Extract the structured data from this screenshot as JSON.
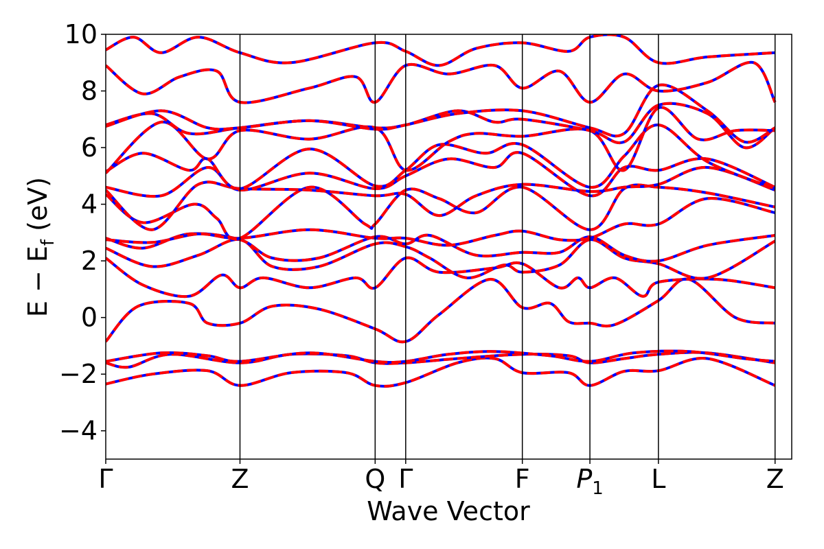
{
  "chart_data": {
    "type": "line",
    "title": "",
    "xlabel": "Wave Vector",
    "ylabel": "E − E_f (eV)",
    "ylabel_parts": {
      "main": "E − E",
      "sub": "f",
      "unit": "(eV)"
    },
    "ylim": [
      -5,
      10
    ],
    "yticks": [
      -4,
      -2,
      0,
      2,
      4,
      6,
      8,
      10
    ],
    "ytick_labels": [
      "−4",
      "−2",
      "0",
      "2",
      "4",
      "6",
      "8",
      "10"
    ],
    "xlim": [
      0,
      7.41
    ],
    "kpoints": [
      {
        "label": "Γ",
        "x": 0.0,
        "sub": ""
      },
      {
        "label": "Z",
        "x": 1.45,
        "sub": ""
      },
      {
        "label": "Q",
        "x": 2.91,
        "sub": ""
      },
      {
        "label": "Γ",
        "x": 3.24,
        "sub": ""
      },
      {
        "label": "F",
        "x": 4.5,
        "sub": ""
      },
      {
        "label": "P",
        "x": 5.23,
        "sub": "1"
      },
      {
        "label": "L",
        "x": 5.97,
        "sub": ""
      },
      {
        "label": "Z",
        "x": 7.23,
        "sub": ""
      }
    ],
    "series_styles": [
      {
        "color": "#0000ff",
        "style": "solid"
      },
      {
        "color": "#ff0000",
        "style": "dashed"
      }
    ],
    "bands": [
      [
        [
          0,
          -2.35
        ],
        [
          0.5,
          -2.0
        ],
        [
          1.1,
          -1.88
        ],
        [
          1.45,
          -2.4
        ],
        [
          2.0,
          -1.95
        ],
        [
          2.6,
          -1.95
        ],
        [
          2.91,
          -2.4
        ],
        [
          3.24,
          -2.3
        ],
        [
          3.8,
          -1.6
        ],
        [
          4.2,
          -1.45
        ],
        [
          4.5,
          -1.95
        ],
        [
          5.0,
          -1.95
        ],
        [
          5.23,
          -2.4
        ],
        [
          5.6,
          -1.9
        ],
        [
          5.97,
          -1.88
        ],
        [
          6.5,
          -1.45
        ],
        [
          7.23,
          -2.4
        ]
      ],
      [
        [
          0,
          -1.6
        ],
        [
          0.25,
          -1.75
        ],
        [
          0.7,
          -1.3
        ],
        [
          1.45,
          -1.6
        ],
        [
          2.0,
          -1.3
        ],
        [
          2.6,
          -1.35
        ],
        [
          2.91,
          -1.6
        ],
        [
          3.24,
          -1.6
        ],
        [
          3.8,
          -1.45
        ],
        [
          4.5,
          -1.3
        ],
        [
          5.0,
          -1.35
        ],
        [
          5.23,
          -1.6
        ],
        [
          5.6,
          -1.45
        ],
        [
          5.97,
          -1.3
        ],
        [
          6.5,
          -1.25
        ],
        [
          7.23,
          -1.6
        ]
      ],
      [
        [
          0,
          -1.55
        ],
        [
          0.6,
          -1.25
        ],
        [
          1.1,
          -1.35
        ],
        [
          1.45,
          -1.55
        ],
        [
          2.2,
          -1.25
        ],
        [
          2.91,
          -1.55
        ],
        [
          3.24,
          -1.55
        ],
        [
          3.7,
          -1.3
        ],
        [
          4.2,
          -1.2
        ],
        [
          4.8,
          -1.35
        ],
        [
          5.23,
          -1.55
        ],
        [
          5.7,
          -1.25
        ],
        [
          6.3,
          -1.2
        ],
        [
          6.9,
          -1.45
        ],
        [
          7.23,
          -1.55
        ]
      ],
      [
        [
          0,
          -0.85
        ],
        [
          0.35,
          0.4
        ],
        [
          0.9,
          0.5
        ],
        [
          1.1,
          -0.2
        ],
        [
          1.45,
          -0.2
        ],
        [
          1.8,
          0.4
        ],
        [
          2.3,
          0.3
        ],
        [
          2.91,
          -0.4
        ],
        [
          3.24,
          -0.85
        ],
        [
          3.6,
          0.1
        ],
        [
          4.15,
          1.35
        ],
        [
          4.5,
          0.35
        ],
        [
          4.8,
          0.5
        ],
        [
          5.0,
          -0.15
        ],
        [
          5.23,
          -0.2
        ],
        [
          5.5,
          -0.25
        ],
        [
          5.97,
          0.6
        ],
        [
          6.3,
          1.35
        ],
        [
          6.8,
          0.0
        ],
        [
          7.23,
          -0.2
        ]
      ],
      [
        [
          0,
          2.1
        ],
        [
          0.4,
          1.15
        ],
        [
          0.9,
          0.75
        ],
        [
          1.25,
          1.5
        ],
        [
          1.45,
          1.05
        ],
        [
          1.7,
          1.4
        ],
        [
          2.2,
          1.05
        ],
        [
          2.7,
          1.4
        ],
        [
          2.91,
          1.05
        ],
        [
          3.24,
          2.1
        ],
        [
          3.6,
          1.6
        ],
        [
          4.2,
          1.75
        ],
        [
          4.5,
          1.9
        ],
        [
          4.9,
          1.05
        ],
        [
          5.1,
          1.4
        ],
        [
          5.23,
          1.05
        ],
        [
          5.5,
          1.4
        ],
        [
          5.8,
          0.75
        ],
        [
          5.97,
          1.25
        ],
        [
          6.6,
          1.35
        ],
        [
          7.23,
          1.05
        ]
      ],
      [
        [
          0,
          2.45
        ],
        [
          0.5,
          1.8
        ],
        [
          1.0,
          2.2
        ],
        [
          1.45,
          2.75
        ],
        [
          1.8,
          1.8
        ],
        [
          2.3,
          1.8
        ],
        [
          2.91,
          2.6
        ],
        [
          3.24,
          2.5
        ],
        [
          3.5,
          2.1
        ],
        [
          3.9,
          1.4
        ],
        [
          4.3,
          1.85
        ],
        [
          4.5,
          1.6
        ],
        [
          4.9,
          1.85
        ],
        [
          5.23,
          2.75
        ],
        [
          5.6,
          2.1
        ],
        [
          5.97,
          1.9
        ],
        [
          6.5,
          1.4
        ],
        [
          7.23,
          2.7
        ]
      ],
      [
        [
          0,
          2.8
        ],
        [
          0.4,
          2.45
        ],
        [
          0.9,
          2.95
        ],
        [
          1.45,
          2.75
        ],
        [
          1.8,
          2.1
        ],
        [
          2.3,
          2.1
        ],
        [
          2.91,
          2.85
        ],
        [
          3.24,
          2.6
        ],
        [
          3.5,
          2.9
        ],
        [
          4.0,
          2.2
        ],
        [
          4.5,
          2.3
        ],
        [
          4.9,
          2.3
        ],
        [
          5.23,
          2.85
        ],
        [
          5.6,
          2.2
        ],
        [
          5.97,
          2.0
        ],
        [
          6.5,
          2.55
        ],
        [
          7.23,
          2.9
        ]
      ],
      [
        [
          0,
          2.75
        ],
        [
          0.5,
          2.65
        ],
        [
          1.0,
          2.95
        ],
        [
          1.45,
          2.8
        ],
        [
          2.2,
          3.1
        ],
        [
          2.91,
          2.8
        ],
        [
          3.24,
          2.8
        ],
        [
          3.7,
          2.55
        ],
        [
          4.2,
          2.9
        ],
        [
          4.5,
          3.05
        ],
        [
          4.9,
          2.75
        ],
        [
          5.23,
          2.8
        ],
        [
          5.6,
          3.3
        ],
        [
          5.97,
          3.3
        ],
        [
          6.5,
          4.2
        ],
        [
          7.23,
          3.7
        ]
      ],
      [
        [
          0,
          4.35
        ],
        [
          0.4,
          3.35
        ],
        [
          0.95,
          4.0
        ],
        [
          1.2,
          3.5
        ],
        [
          1.45,
          2.8
        ],
        [
          2.2,
          4.6
        ],
        [
          2.8,
          3.3
        ],
        [
          2.91,
          3.3
        ],
        [
          3.24,
          4.5
        ],
        [
          3.6,
          4.2
        ],
        [
          4.0,
          3.7
        ],
        [
          4.5,
          4.6
        ],
        [
          5.23,
          3.1
        ],
        [
          5.6,
          4.55
        ],
        [
          5.97,
          4.6
        ],
        [
          6.5,
          4.4
        ],
        [
          7.23,
          3.9
        ]
      ],
      [
        [
          0,
          4.5
        ],
        [
          0.5,
          3.1
        ],
        [
          1.0,
          4.7
        ],
        [
          1.45,
          4.55
        ],
        [
          2.2,
          4.5
        ],
        [
          2.91,
          4.3
        ],
        [
          3.24,
          4.35
        ],
        [
          3.6,
          3.6
        ],
        [
          4.0,
          4.3
        ],
        [
          4.5,
          4.7
        ],
        [
          5.23,
          4.45
        ],
        [
          5.6,
          4.6
        ],
        [
          5.97,
          4.7
        ],
        [
          6.5,
          5.3
        ],
        [
          7.23,
          4.5
        ]
      ],
      [
        [
          0,
          4.6
        ],
        [
          0.6,
          4.3
        ],
        [
          1.1,
          5.3
        ],
        [
          1.45,
          4.5
        ],
        [
          2.2,
          5.1
        ],
        [
          2.91,
          4.55
        ],
        [
          3.24,
          5.0
        ],
        [
          3.7,
          5.6
        ],
        [
          4.2,
          5.3
        ],
        [
          4.5,
          5.8
        ],
        [
          5.23,
          4.3
        ],
        [
          5.6,
          5.3
        ],
        [
          5.97,
          5.2
        ],
        [
          6.5,
          5.6
        ],
        [
          7.23,
          4.6
        ]
      ],
      [
        [
          0,
          5.15
        ],
        [
          0.4,
          5.8
        ],
        [
          0.9,
          5.2
        ],
        [
          1.1,
          5.6
        ],
        [
          1.45,
          4.55
        ],
        [
          2.2,
          5.95
        ],
        [
          2.91,
          4.65
        ],
        [
          3.24,
          5.2
        ],
        [
          3.6,
          6.1
        ],
        [
          4.1,
          5.8
        ],
        [
          4.5,
          6.1
        ],
        [
          5.23,
          4.6
        ],
        [
          5.6,
          5.7
        ],
        [
          5.97,
          6.8
        ],
        [
          6.5,
          5.5
        ],
        [
          7.23,
          4.55
        ]
      ],
      [
        [
          0,
          5.1
        ],
        [
          0.6,
          6.9
        ],
        [
          1.1,
          5.6
        ],
        [
          1.45,
          6.6
        ],
        [
          2.2,
          6.3
        ],
        [
          2.91,
          6.7
        ],
        [
          3.24,
          5.2
        ],
        [
          3.7,
          6.2
        ],
        [
          4.0,
          6.5
        ],
        [
          4.5,
          6.4
        ],
        [
          5.23,
          6.6
        ],
        [
          5.6,
          5.2
        ],
        [
          5.97,
          7.4
        ],
        [
          6.4,
          6.3
        ],
        [
          6.8,
          6.6
        ],
        [
          7.23,
          6.6
        ]
      ],
      [
        [
          0,
          6.8
        ],
        [
          0.5,
          7.2
        ],
        [
          0.9,
          6.5
        ],
        [
          1.45,
          6.7
        ],
        [
          2.2,
          6.95
        ],
        [
          2.91,
          6.7
        ],
        [
          3.24,
          6.8
        ],
        [
          3.8,
          7.3
        ],
        [
          4.2,
          6.9
        ],
        [
          4.5,
          7.0
        ],
        [
          5.23,
          6.6
        ],
        [
          5.6,
          6.2
        ],
        [
          5.97,
          7.5
        ],
        [
          6.5,
          7.2
        ],
        [
          6.9,
          6.0
        ],
        [
          7.23,
          6.7
        ]
      ],
      [
        [
          0,
          6.75
        ],
        [
          0.6,
          7.3
        ],
        [
          1.1,
          6.7
        ],
        [
          1.45,
          6.7
        ],
        [
          2.2,
          6.95
        ],
        [
          2.91,
          6.65
        ],
        [
          3.24,
          6.8
        ],
        [
          3.8,
          7.2
        ],
        [
          4.5,
          7.3
        ],
        [
          5.23,
          6.7
        ],
        [
          5.6,
          6.5
        ],
        [
          5.97,
          8.2
        ],
        [
          6.5,
          7.3
        ],
        [
          6.9,
          6.2
        ],
        [
          7.23,
          6.7
        ]
      ],
      [
        [
          0,
          8.9
        ],
        [
          0.4,
          7.9
        ],
        [
          0.8,
          8.5
        ],
        [
          1.2,
          8.7
        ],
        [
          1.45,
          7.6
        ],
        [
          2.2,
          8.1
        ],
        [
          2.7,
          8.5
        ],
        [
          2.91,
          7.6
        ],
        [
          3.24,
          8.9
        ],
        [
          3.7,
          8.6
        ],
        [
          4.2,
          8.9
        ],
        [
          4.5,
          8.1
        ],
        [
          4.9,
          8.7
        ],
        [
          5.23,
          7.6
        ],
        [
          5.6,
          8.6
        ],
        [
          5.97,
          8.0
        ],
        [
          6.5,
          8.3
        ],
        [
          7.0,
          9.0
        ],
        [
          7.23,
          7.6
        ]
      ],
      [
        [
          0,
          9.45
        ],
        [
          0.3,
          9.9
        ],
        [
          0.6,
          9.35
        ],
        [
          1.0,
          9.9
        ],
        [
          1.45,
          9.35
        ],
        [
          2.0,
          9.0
        ],
        [
          2.91,
          9.7
        ],
        [
          3.24,
          9.4
        ],
        [
          3.6,
          8.9
        ],
        [
          4.0,
          9.5
        ],
        [
          4.5,
          9.7
        ],
        [
          5.0,
          9.4
        ],
        [
          5.23,
          9.9
        ],
        [
          5.6,
          9.9
        ],
        [
          5.97,
          9.0
        ],
        [
          6.5,
          9.2
        ],
        [
          7.23,
          9.35
        ]
      ]
    ]
  }
}
